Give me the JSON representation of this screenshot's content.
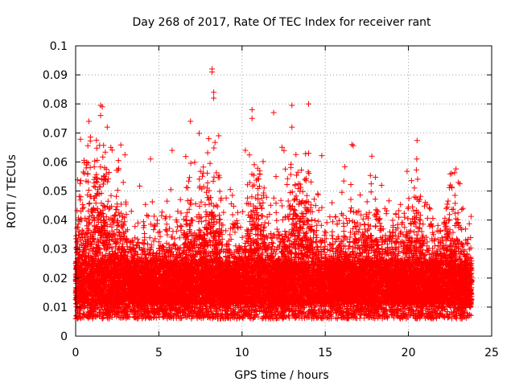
{
  "chart_data": {
    "type": "scatter",
    "title": "Day 268 of 2017, Rate Of TEC Index for receiver rant",
    "xlabel": "GPS time / hours",
    "ylabel": "ROTI / TECUs",
    "xlim": [
      0,
      25
    ],
    "ylim": [
      0,
      0.1
    ],
    "xticks": [
      "0",
      "5",
      "10",
      "15",
      "20",
      "25"
    ],
    "yticks": [
      "0",
      "0.01",
      "0.02",
      "0.03",
      "0.04",
      "0.05",
      "0.06",
      "0.07",
      "0.08",
      "0.09",
      "0.1"
    ],
    "grid": true,
    "legend": "none",
    "marker": "plus",
    "color": "#ff0000",
    "data_summary": {
      "x_range": [
        0,
        23.8
      ],
      "typical_y_range": [
        0.005,
        0.03
      ],
      "point_count_estimate": 20000
    },
    "outliers": [
      {
        "x": 8.2,
        "y": 0.092
      },
      {
        "x": 8.2,
        "y": 0.091
      },
      {
        "x": 8.3,
        "y": 0.084
      },
      {
        "x": 8.3,
        "y": 0.082
      },
      {
        "x": 1.5,
        "y": 0.0795
      },
      {
        "x": 1.6,
        "y": 0.079
      },
      {
        "x": 13.0,
        "y": 0.0795
      },
      {
        "x": 14.0,
        "y": 0.08
      },
      {
        "x": 10.6,
        "y": 0.078
      },
      {
        "x": 11.9,
        "y": 0.077
      },
      {
        "x": 10.6,
        "y": 0.075
      },
      {
        "x": 1.5,
        "y": 0.076
      },
      {
        "x": 1.9,
        "y": 0.072
      },
      {
        "x": 6.9,
        "y": 0.074
      },
      {
        "x": 0.8,
        "y": 0.074
      },
      {
        "x": 13.0,
        "y": 0.072
      },
      {
        "x": 8.0,
        "y": 0.068
      },
      {
        "x": 8.6,
        "y": 0.069
      },
      {
        "x": 16.6,
        "y": 0.066
      },
      {
        "x": 5.8,
        "y": 0.064
      },
      {
        "x": 12.4,
        "y": 0.065
      },
      {
        "x": 10.2,
        "y": 0.064
      },
      {
        "x": 20.5,
        "y": 0.061
      },
      {
        "x": 4.5,
        "y": 0.061
      },
      {
        "x": 17.8,
        "y": 0.062
      },
      {
        "x": 14.0,
        "y": 0.063
      },
      {
        "x": 22.6,
        "y": 0.056
      },
      {
        "x": 23.0,
        "y": 0.053
      }
    ]
  }
}
